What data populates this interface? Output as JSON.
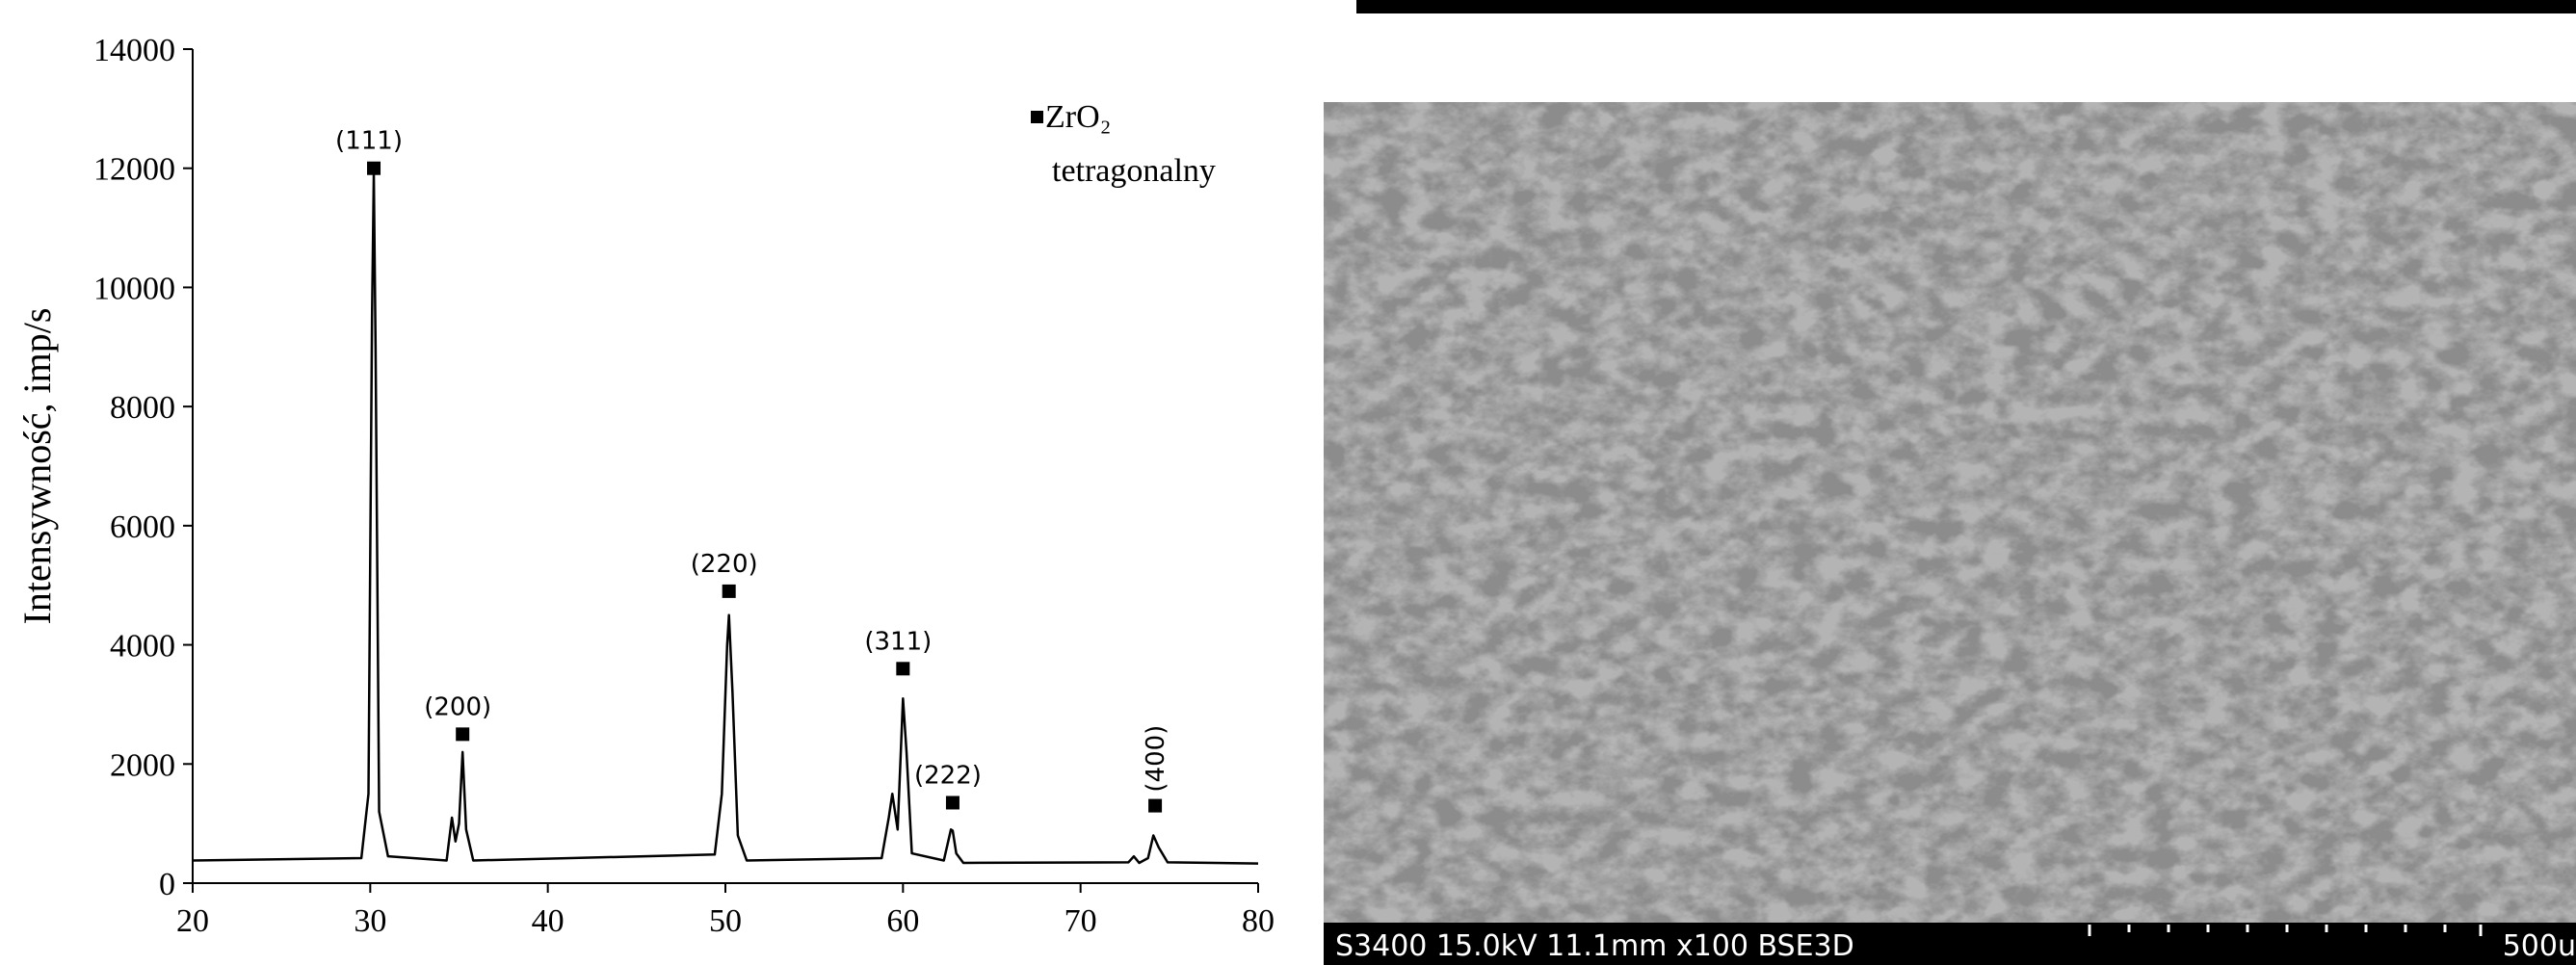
{
  "chart_data": {
    "type": "line",
    "x": [
      20,
      29.5,
      29.9,
      30.1,
      30.2,
      30.3,
      30.5,
      31,
      34.3,
      34.6,
      34.8,
      35.0,
      35.2,
      35.4,
      35.8,
      49.4,
      49.8,
      50.1,
      50.2,
      50.4,
      50.7,
      51.2,
      58.8,
      59.2,
      59.4,
      59.7,
      60.0,
      60.2,
      60.5,
      62.3,
      62.7,
      62.8,
      63.0,
      63.4,
      72.7,
      73.0,
      73.3,
      73.8,
      74.1,
      74.4,
      74.9,
      80
    ],
    "series": [
      {
        "color": "#000000",
        "values": [
          380,
          420,
          1500,
          9500,
          11900,
          9000,
          1200,
          450,
          380,
          1100,
          700,
          1000,
          2200,
          900,
          380,
          480,
          1500,
          4000,
          4500,
          3200,
          800,
          380,
          420,
          1100,
          1500,
          900,
          3100,
          2200,
          500,
          380,
          900,
          880,
          500,
          340,
          350,
          450,
          340,
          420,
          800,
          600,
          350,
          330
        ]
      }
    ],
    "y_label": "Intensywność, imp/s",
    "xlim": [
      20,
      80
    ],
    "xticks": [
      20,
      30,
      40,
      50,
      60,
      70,
      80
    ],
    "ylim": [
      0,
      14000
    ],
    "yticks": [
      0,
      2000,
      4000,
      6000,
      8000,
      10000,
      12000,
      14000
    ],
    "annotations": [
      {
        "text": "(111)",
        "x": 30.2,
        "y": 12000
      },
      {
        "text": "(200)",
        "x": 35.2,
        "y": 2500
      },
      {
        "text": "(220)",
        "x": 50.2,
        "y": 4900
      },
      {
        "text": "(311)",
        "x": 60.0,
        "y": 3600
      },
      {
        "text": "(222)",
        "x": 62.8,
        "y": 1350
      },
      {
        "text": "(400)",
        "x": 74.2,
        "y": 1300,
        "rotation": -90
      }
    ],
    "marker_legend": {
      "label": "ZrO₂",
      "sublabel": "tetragonalny"
    }
  },
  "sem_image": {
    "info": "S3400 15.0kV 11.1mm x100 BSE3D",
    "scale_label": "500u"
  }
}
